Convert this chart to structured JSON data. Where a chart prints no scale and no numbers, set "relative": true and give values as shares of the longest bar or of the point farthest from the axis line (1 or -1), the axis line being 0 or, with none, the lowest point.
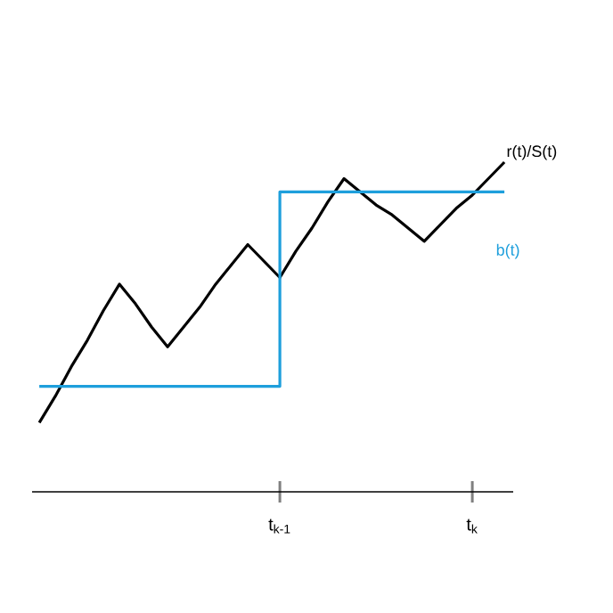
{
  "chart_data": {
    "type": "line",
    "relative": true,
    "categories": [
      null,
      null,
      null,
      null,
      null,
      null,
      null,
      null,
      null,
      null,
      null,
      null,
      null,
      null,
      null,
      "t$_{k-1}$",
      null,
      null,
      null,
      null,
      null,
      null,
      null,
      null,
      null,
      null,
      null,
      "t$_{k}$",
      null,
      null
    ],
    "series": [
      {
        "name": "r(t)/S(t)",
        "color": "#000000",
        "values": [
          0.21,
          0.29,
          0.38,
          0.46,
          0.55,
          0.63,
          0.57,
          0.5,
          0.44,
          0.5,
          0.56,
          0.63,
          0.69,
          0.75,
          0.7,
          0.65,
          0.73,
          0.8,
          0.88,
          0.95,
          0.91,
          0.87,
          0.84,
          0.8,
          0.76,
          0.81,
          0.86,
          0.9,
          0.95,
          1.0
        ]
      },
      {
        "name": "b(t)",
        "type": "step",
        "color": "#1e9fdc",
        "values": [
          0.32,
          0.32,
          0.32,
          0.32,
          0.32,
          0.32,
          0.32,
          0.32,
          0.32,
          0.32,
          0.32,
          0.32,
          0.32,
          0.32,
          0.32,
          0.91,
          0.91,
          0.91,
          0.91,
          0.91,
          0.91,
          0.91,
          0.91,
          0.91,
          0.91,
          0.91,
          0.91,
          0.91,
          0.91,
          0.91
        ]
      }
    ]
  }
}
